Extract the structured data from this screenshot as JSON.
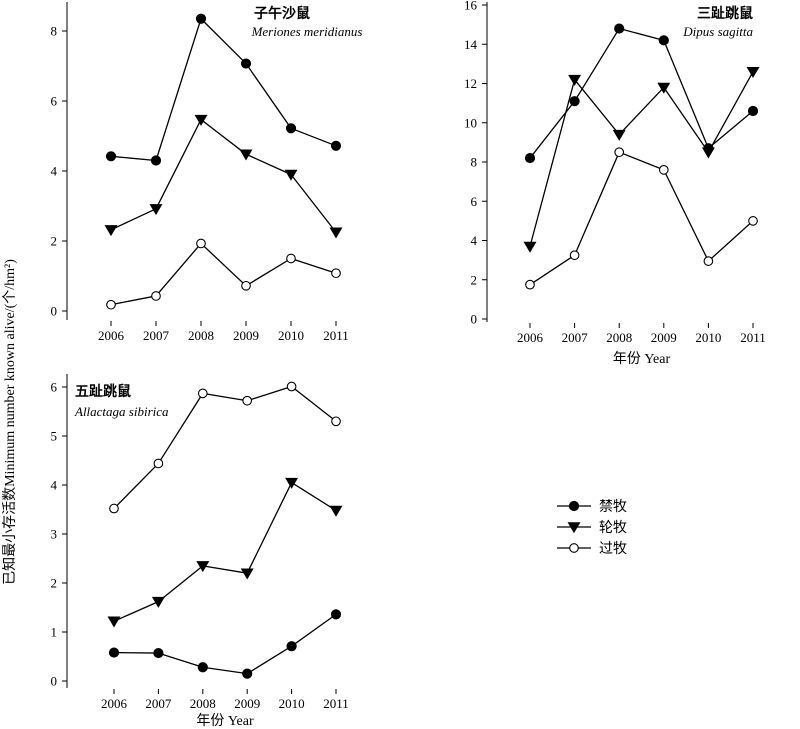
{
  "figure": {
    "ylabel": "已知最小存活数Minimum number known alive/(个/hm²)",
    "xlabel": "年份 Year"
  },
  "legend": [
    {
      "name": "禁牧",
      "marker": "circle-filled"
    },
    {
      "name": "轮牧",
      "marker": "triangle-down-filled"
    },
    {
      "name": "过牧",
      "marker": "circle-open"
    }
  ],
  "chart_data": [
    {
      "type": "line",
      "title": "子午沙鼠",
      "subtitle": "Meriones meridianus",
      "x": [
        2006,
        2007,
        2008,
        2009,
        2010,
        2011
      ],
      "ylim": [
        0,
        9
      ],
      "yticks": [
        0,
        2,
        4,
        6,
        8
      ],
      "xlabel": "",
      "series": [
        {
          "name": "禁牧",
          "values": [
            4.42,
            4.3,
            8.35,
            7.07,
            5.22,
            4.72
          ]
        },
        {
          "name": "轮牧",
          "values": [
            2.32,
            2.92,
            5.47,
            4.48,
            3.9,
            2.25
          ]
        },
        {
          "name": "过牧",
          "values": [
            0.18,
            0.43,
            1.93,
            0.72,
            1.5,
            1.08
          ]
        }
      ]
    },
    {
      "type": "line",
      "title": "三趾跳鼠",
      "subtitle": "Dipus sagitta",
      "x": [
        2006,
        2007,
        2008,
        2009,
        2010,
        2011
      ],
      "ylim": [
        0,
        16
      ],
      "yticks": [
        0,
        2,
        4,
        6,
        8,
        10,
        12,
        14,
        16
      ],
      "xlabel": "年份 Year",
      "series": [
        {
          "name": "禁牧",
          "values": [
            8.2,
            11.1,
            14.8,
            14.2,
            8.7,
            10.6
          ]
        },
        {
          "name": "轮牧",
          "values": [
            3.7,
            12.2,
            9.4,
            11.8,
            8.5,
            12.6
          ]
        },
        {
          "name": "过牧",
          "values": [
            1.75,
            3.25,
            8.5,
            7.6,
            2.95,
            5.0
          ]
        }
      ]
    },
    {
      "type": "line",
      "title": "五趾跳鼠",
      "subtitle": "Allactaga sibirica",
      "x": [
        2006,
        2007,
        2008,
        2009,
        2010,
        2011
      ],
      "ylim": [
        0,
        6.2
      ],
      "yticks": [
        0,
        1,
        2,
        3,
        4,
        5,
        6
      ],
      "xlabel": "年份 Year",
      "series": [
        {
          "name": "禁牧",
          "values": [
            0.58,
            0.57,
            0.28,
            0.15,
            0.71,
            1.36
          ]
        },
        {
          "name": "轮牧",
          "values": [
            1.22,
            1.62,
            2.35,
            2.2,
            4.05,
            3.48
          ]
        },
        {
          "name": "过牧",
          "values": [
            3.52,
            4.44,
            5.87,
            5.72,
            6.01,
            5.3
          ]
        }
      ]
    }
  ]
}
